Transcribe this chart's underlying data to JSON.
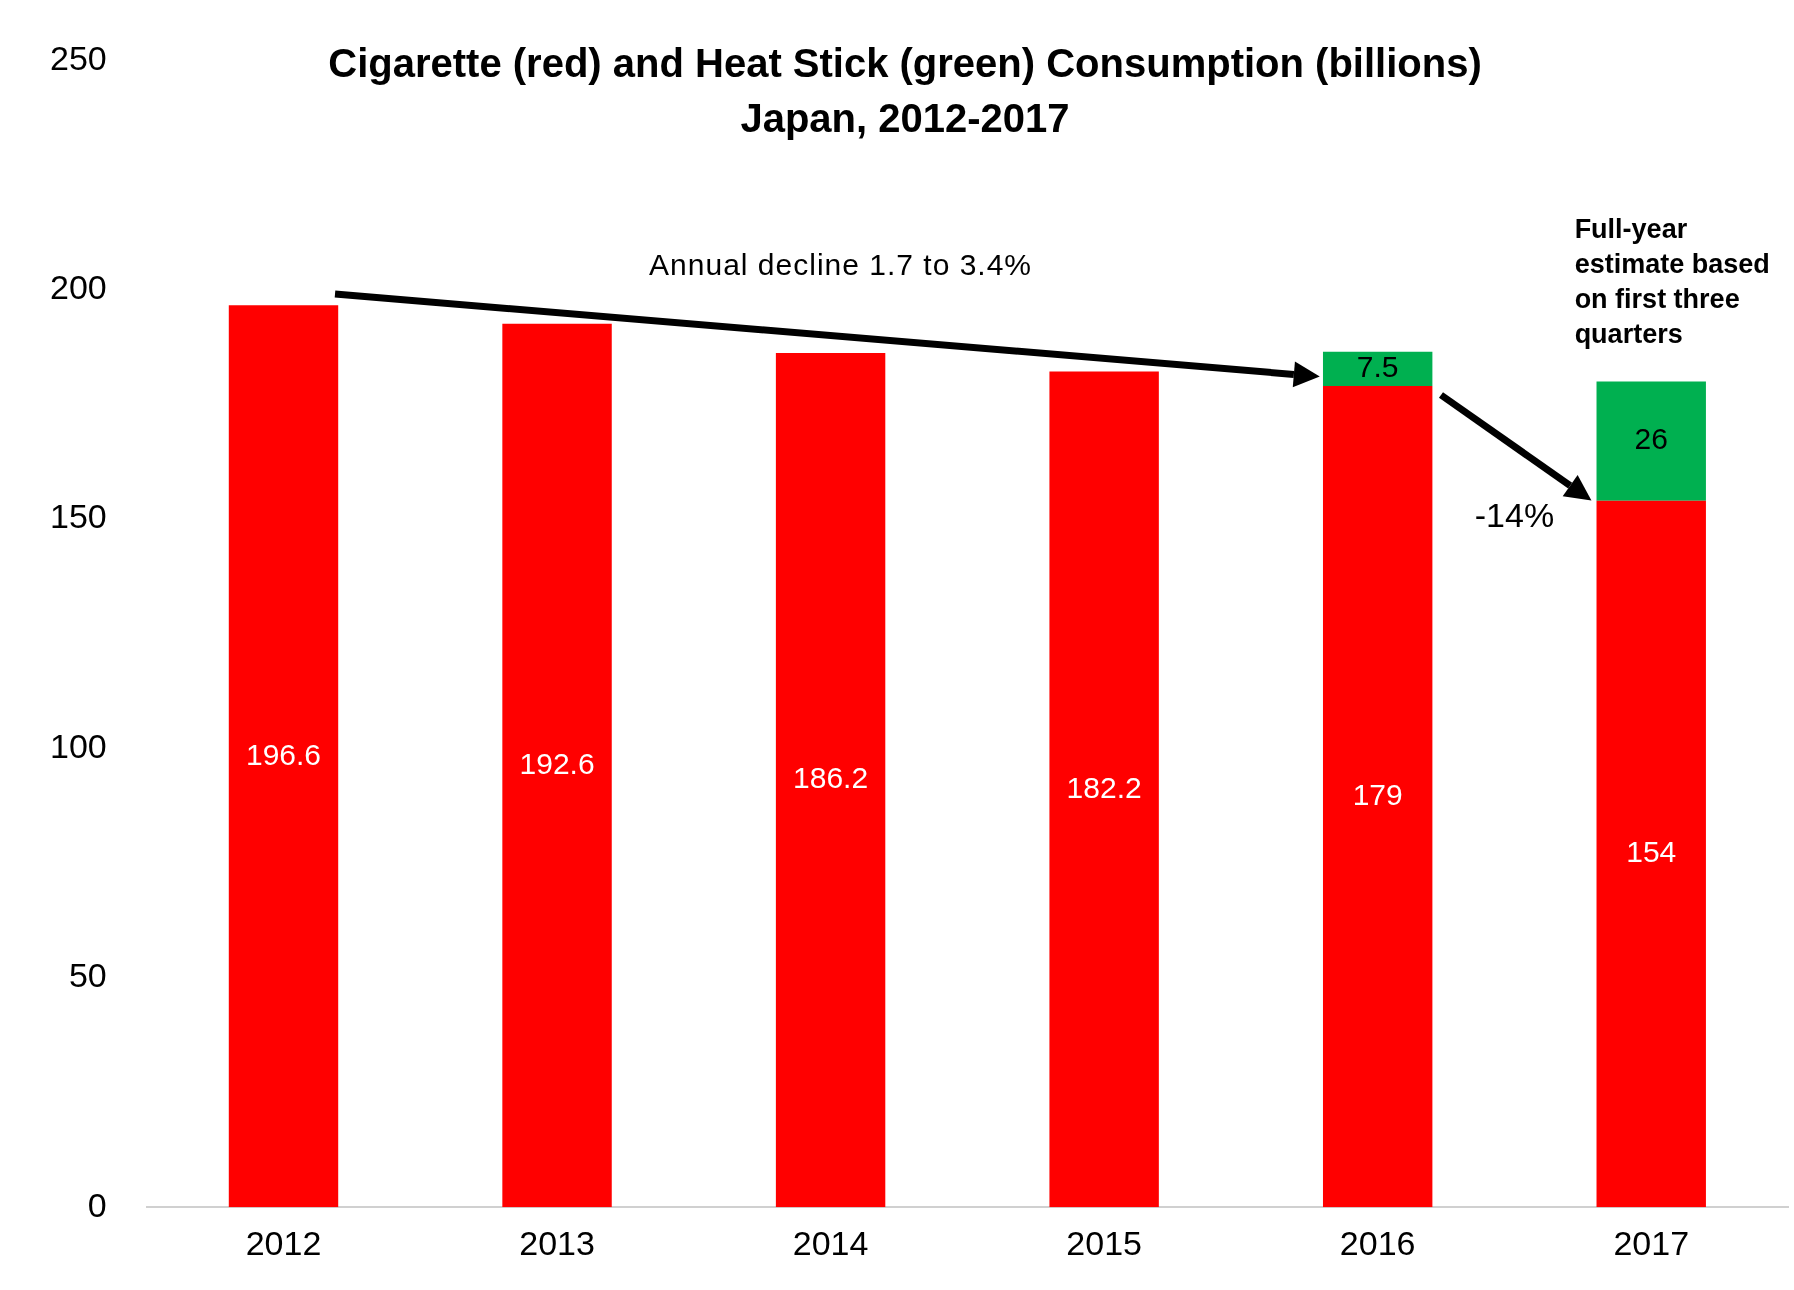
{
  "chart_data": {
    "type": "bar",
    "title": "Cigarette (red) and Heat Stick (green) Consumption (billions)\nJapan, 2012-2017",
    "categories": [
      "2012",
      "2013",
      "2014",
      "2015",
      "2016",
      "2017"
    ],
    "series": [
      {
        "color": "#ff0000",
        "values": [
          196.6,
          192.6,
          186.2,
          182.2,
          179,
          154
        ]
      },
      {
        "color": "#00b050",
        "values": [
          null,
          null,
          null,
          null,
          7.5,
          26
        ]
      }
    ],
    "stacked": true,
    "data_labels": true,
    "ylim": [
      0,
      250
    ],
    "yticks": [
      0,
      50,
      100,
      150,
      200,
      250
    ],
    "grid": false,
    "legend": false,
    "annotations": [
      "Annual decline 1.7 to 3.4%",
      "-14%",
      "Full-year estimate based on first three quarters"
    ]
  }
}
